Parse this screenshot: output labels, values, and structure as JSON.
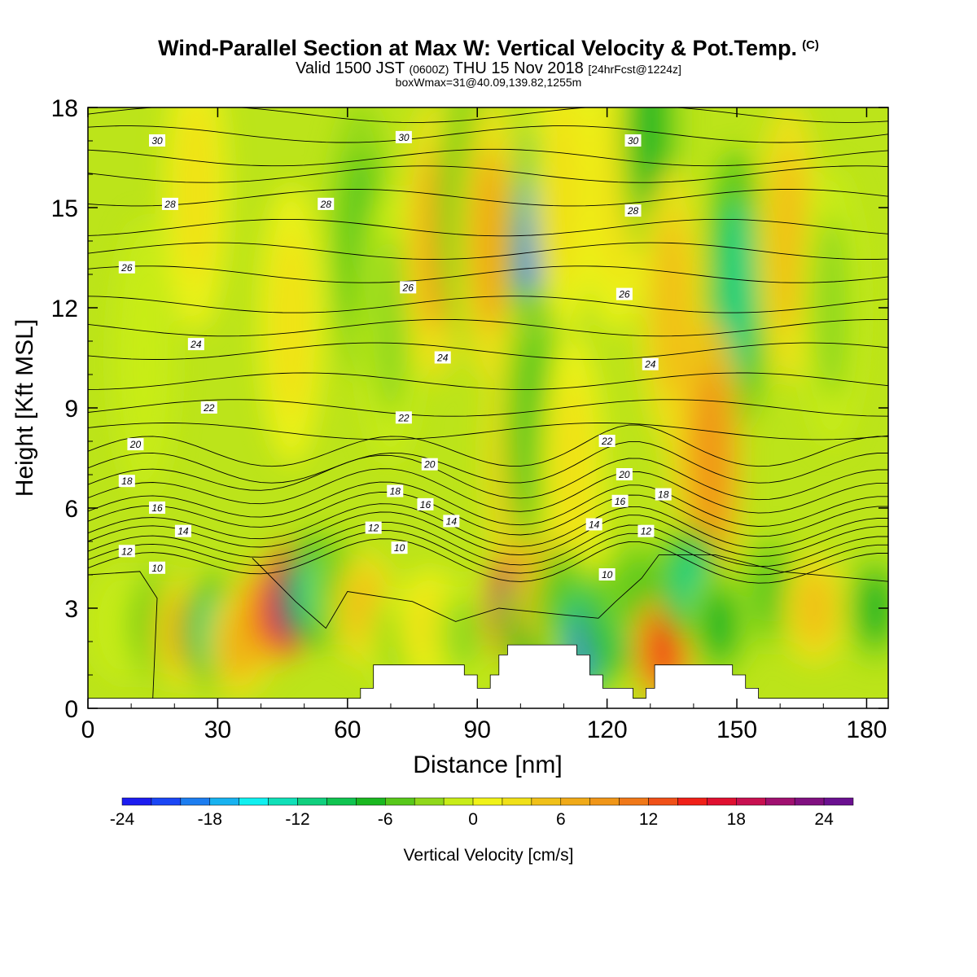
{
  "chart_data": {
    "type": "heatmap",
    "title": "Wind-Parallel Section at Max W: Vertical Velocity & Pot.Temp.",
    "title_suffix": "(C)",
    "subtitle_main_a": "Valid 1500 JST",
    "subtitle_small_a": "(0600Z)",
    "subtitle_main_b": "THU 15 Nov 2018",
    "subtitle_small_b": "[24hrFcst@1224z]",
    "subtitle2": "boxWmax=31@40.09,139.82,1255m",
    "xlabel": "Distance [nm]",
    "ylabel": "Height [Kft MSL]",
    "xlim": [
      0,
      185
    ],
    "ylim": [
      0,
      18
    ],
    "xticks": [
      0,
      30,
      60,
      90,
      120,
      150,
      180
    ],
    "yticks": [
      0,
      3,
      6,
      9,
      12,
      15,
      18
    ],
    "colorbar": {
      "label": "Vertical Velocity [cm/s]",
      "min": -24,
      "max": 26,
      "ticks": [
        -24,
        -18,
        -12,
        -6,
        0,
        6,
        12,
        18,
        24
      ],
      "colors": [
        "#1c1cf0",
        "#1a46f5",
        "#1c7df0",
        "#17b2f0",
        "#10f0f0",
        "#10e0b8",
        "#10d07e",
        "#10c450",
        "#1ab820",
        "#58c81a",
        "#90d81a",
        "#c8ec18",
        "#f0f218",
        "#f0e018",
        "#f0c018",
        "#f0aa18",
        "#f09618",
        "#f07818",
        "#f05018",
        "#f02018",
        "#e01030",
        "#c81050",
        "#a01070",
        "#801080",
        "#6a1090"
      ]
    },
    "velocity_cells": [
      {
        "x": 13,
        "z": 10.5,
        "w": -2
      },
      {
        "x": 25,
        "z": 15.5,
        "w": 2
      },
      {
        "x": 47,
        "z": 11.5,
        "w": 3
      },
      {
        "x": 63,
        "z": 14,
        "w": -5
      },
      {
        "x": 70,
        "z": 11.5,
        "w": -4
      },
      {
        "x": 80,
        "z": 14,
        "w": 7
      },
      {
        "x": 88,
        "z": 15,
        "w": -6
      },
      {
        "x": 93,
        "z": 14,
        "w": 7
      },
      {
        "x": 103,
        "z": 13.2,
        "w": -19
      },
      {
        "x": 110,
        "z": 15.5,
        "w": 3
      },
      {
        "x": 122,
        "z": 15.5,
        "w": 2
      },
      {
        "x": 130,
        "z": 17.5,
        "w": -8
      },
      {
        "x": 140,
        "z": 9.5,
        "w": 6
      },
      {
        "x": 135,
        "z": 12,
        "w": 4
      },
      {
        "x": 150,
        "z": 12.5,
        "w": -11
      },
      {
        "x": 162,
        "z": 14,
        "w": 4
      },
      {
        "x": 172,
        "z": 12,
        "w": -3
      },
      {
        "x": 144,
        "z": 7.5,
        "w": 9
      },
      {
        "x": 99,
        "z": 7.5,
        "w": 7
      },
      {
        "x": 103,
        "z": 8.5,
        "w": -5
      },
      {
        "x": 112,
        "z": 7,
        "w": 3
      },
      {
        "x": 8,
        "z": 2.5,
        "w": -2
      },
      {
        "x": 16,
        "z": 2.5,
        "w": -6
      },
      {
        "x": 22,
        "z": 2.3,
        "w": 6
      },
      {
        "x": 29,
        "z": 2.3,
        "w": -12
      },
      {
        "x": 35,
        "z": 2.0,
        "w": 7
      },
      {
        "x": 41,
        "z": 2.8,
        "w": 10
      },
      {
        "x": 46,
        "z": 3.2,
        "w": 26
      },
      {
        "x": 53,
        "z": 3.5,
        "w": -14
      },
      {
        "x": 58,
        "z": 3.5,
        "w": -6
      },
      {
        "x": 64,
        "z": 3.0,
        "w": 5
      },
      {
        "x": 72,
        "z": 2.0,
        "w": -4
      },
      {
        "x": 79,
        "z": 2.5,
        "w": 3
      },
      {
        "x": 87,
        "z": 2.2,
        "w": -4
      },
      {
        "x": 97,
        "z": 3.0,
        "w": 22
      },
      {
        "x": 102,
        "z": 2.5,
        "w": -7
      },
      {
        "x": 106,
        "z": 3.5,
        "w": 8
      },
      {
        "x": 110,
        "z": 3.2,
        "w": -5
      },
      {
        "x": 115,
        "z": 2.0,
        "w": -22
      },
      {
        "x": 121,
        "z": 2.5,
        "w": -9
      },
      {
        "x": 127,
        "z": 3.5,
        "w": -6
      },
      {
        "x": 133,
        "z": 1.8,
        "w": 12
      },
      {
        "x": 139,
        "z": 3.8,
        "w": -12
      },
      {
        "x": 146,
        "z": 2.5,
        "w": -8
      },
      {
        "x": 158,
        "z": 3.5,
        "w": -6
      },
      {
        "x": 168,
        "z": 3.0,
        "w": 5
      },
      {
        "x": 182,
        "z": 3.0,
        "w": -8
      }
    ],
    "terrain": [
      [
        0,
        0.3
      ],
      [
        63,
        0.3
      ],
      [
        63,
        0.6
      ],
      [
        66,
        0.6
      ],
      [
        66,
        1.3
      ],
      [
        87,
        1.3
      ],
      [
        87,
        1.0
      ],
      [
        90,
        1.0
      ],
      [
        90,
        0.6
      ],
      [
        93,
        0.6
      ],
      [
        93,
        1.0
      ],
      [
        95,
        1.0
      ],
      [
        95,
        1.6
      ],
      [
        97,
        1.6
      ],
      [
        97,
        1.9
      ],
      [
        113,
        1.9
      ],
      [
        113,
        1.6
      ],
      [
        116,
        1.6
      ],
      [
        116,
        1.0
      ],
      [
        119,
        1.0
      ],
      [
        119,
        0.6
      ],
      [
        126,
        0.6
      ],
      [
        126,
        0.3
      ],
      [
        129,
        0.3
      ],
      [
        129,
        0.6
      ],
      [
        131,
        0.6
      ],
      [
        131,
        1.3
      ],
      [
        149,
        1.3
      ],
      [
        149,
        1.0
      ],
      [
        152,
        1.0
      ],
      [
        152,
        0.6
      ],
      [
        155,
        0.6
      ],
      [
        155,
        0.3
      ],
      [
        185,
        0.3
      ],
      [
        185,
        0
      ],
      [
        0,
        0
      ]
    ],
    "theta_levels": [
      {
        "value": 31,
        "base": 17.8
      },
      {
        "value": 30,
        "base": 17.2,
        "label": "30"
      },
      {
        "value": 29,
        "base": 16.5
      },
      {
        "value": 28.5,
        "base": 16.0
      },
      {
        "value": 28,
        "base": 15.3,
        "label": "28"
      },
      {
        "value": 27,
        "base": 14.4
      },
      {
        "value": 26.5,
        "base": 13.7
      },
      {
        "value": 26,
        "base": 13.0,
        "label": "26"
      },
      {
        "value": 25,
        "base": 12.1
      },
      {
        "value": 24.5,
        "base": 11.4
      },
      {
        "value": 24,
        "base": 10.7,
        "label": "24"
      },
      {
        "value": 23,
        "base": 9.8
      },
      {
        "value": 22,
        "base": 9.0,
        "label": "22"
      },
      {
        "value": 21,
        "base": 8.3
      },
      {
        "value": 20,
        "base": 7.7,
        "label": "20"
      },
      {
        "value": 19,
        "base": 7.2
      },
      {
        "value": 18,
        "base": 6.7,
        "label": "18"
      },
      {
        "value": 17,
        "base": 6.3
      },
      {
        "value": 16,
        "base": 5.9,
        "label": "16"
      },
      {
        "value": 15,
        "base": 5.6
      },
      {
        "value": 14,
        "base": 5.25,
        "label": "14"
      },
      {
        "value": 13,
        "base": 5.0
      },
      {
        "value": 12,
        "base": 4.7,
        "label": "12"
      },
      {
        "value": 11,
        "base": 4.45
      },
      {
        "value": 10,
        "base": 4.2,
        "label": "10"
      }
    ],
    "theta_label_positions": {
      "30": [
        [
          16,
          17.0
        ],
        [
          73,
          17.1
        ],
        [
          126,
          17.0
        ]
      ],
      "28": [
        [
          19,
          15.1
        ],
        [
          55,
          15.1
        ],
        [
          126,
          14.9
        ]
      ],
      "26": [
        [
          9,
          13.2
        ],
        [
          74,
          12.6
        ],
        [
          124,
          12.4
        ]
      ],
      "24": [
        [
          25,
          10.9
        ],
        [
          82,
          10.5
        ],
        [
          130,
          10.3
        ]
      ],
      "22": [
        [
          28,
          9.0
        ],
        [
          73,
          8.7
        ],
        [
          120,
          8.0
        ]
      ],
      "20": [
        [
          11,
          7.9
        ],
        [
          79,
          7.3
        ],
        [
          124,
          7.0
        ]
      ],
      "18": [
        [
          9,
          6.8
        ],
        [
          71,
          6.5
        ],
        [
          133,
          6.4
        ]
      ],
      "16": [
        [
          16,
          6.0
        ],
        [
          78,
          6.1
        ],
        [
          123,
          6.2
        ]
      ],
      "14": [
        [
          22,
          5.3
        ],
        [
          84,
          5.6
        ],
        [
          117,
          5.5
        ]
      ],
      "12": [
        [
          9,
          4.7
        ],
        [
          66,
          5.4
        ],
        [
          129,
          5.3
        ]
      ],
      "10": [
        [
          16,
          4.2
        ],
        [
          72,
          4.8
        ],
        [
          120,
          4.0
        ]
      ]
    }
  }
}
